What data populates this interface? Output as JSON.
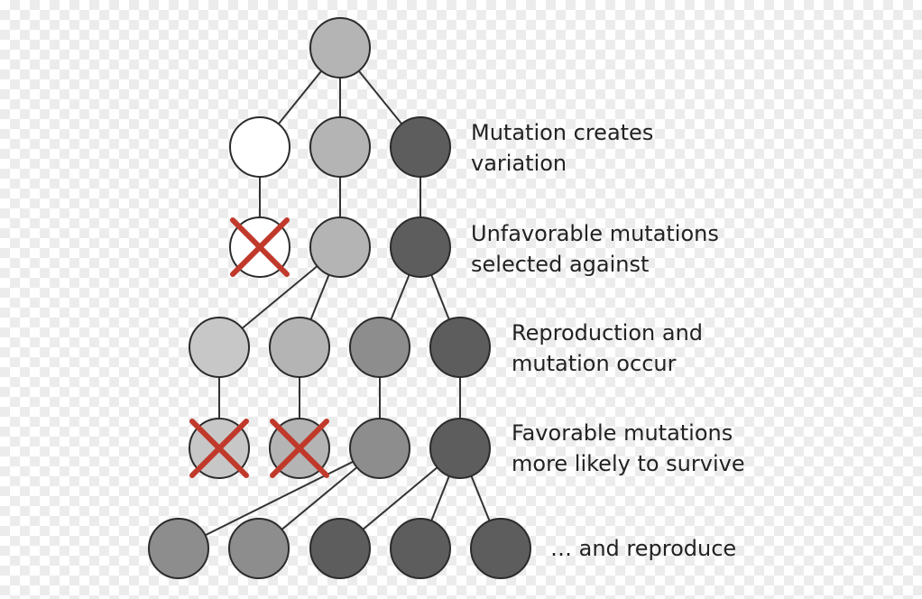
{
  "colors": {
    "white": "#ffffff",
    "light": "#c7c7c7",
    "light_mid": "#b4b4b4",
    "mid": "#8d8d8d",
    "dark": "#5d5d5d",
    "stroke": "#2b2b2b",
    "edge": "#333333",
    "cross": "#c0392b"
  },
  "nodes": [
    {
      "id": "root",
      "shade": "light_mid",
      "crossed": false
    },
    {
      "id": "g1a",
      "shade": "white",
      "crossed": false
    },
    {
      "id": "g1b",
      "shade": "light_mid",
      "crossed": false
    },
    {
      "id": "g1c",
      "shade": "dark",
      "crossed": false
    },
    {
      "id": "g2a",
      "shade": "white",
      "crossed": true
    },
    {
      "id": "g2b",
      "shade": "light_mid",
      "crossed": false
    },
    {
      "id": "g2c",
      "shade": "dark",
      "crossed": false
    },
    {
      "id": "g3a",
      "shade": "light",
      "crossed": false
    },
    {
      "id": "g3b",
      "shade": "light_mid",
      "crossed": false
    },
    {
      "id": "g3c",
      "shade": "mid",
      "crossed": false
    },
    {
      "id": "g3d",
      "shade": "dark",
      "crossed": false
    },
    {
      "id": "g4a",
      "shade": "light",
      "crossed": true
    },
    {
      "id": "g4b",
      "shade": "light_mid",
      "crossed": true
    },
    {
      "id": "g4c",
      "shade": "mid",
      "crossed": false
    },
    {
      "id": "g4d",
      "shade": "dark",
      "crossed": false
    },
    {
      "id": "g5a",
      "shade": "mid",
      "crossed": false
    },
    {
      "id": "g5b",
      "shade": "mid",
      "crossed": false
    },
    {
      "id": "g5c",
      "shade": "dark",
      "crossed": false
    },
    {
      "id": "g5d",
      "shade": "dark",
      "crossed": false
    },
    {
      "id": "g5e",
      "shade": "dark",
      "crossed": false
    }
  ],
  "edges": [
    [
      "root",
      "g1a"
    ],
    [
      "root",
      "g1b"
    ],
    [
      "root",
      "g1c"
    ],
    [
      "g1a",
      "g2a"
    ],
    [
      "g1b",
      "g2b"
    ],
    [
      "g1c",
      "g2c"
    ],
    [
      "g2b",
      "g3a"
    ],
    [
      "g2b",
      "g3b"
    ],
    [
      "g2c",
      "g3c"
    ],
    [
      "g2c",
      "g3d"
    ],
    [
      "g3a",
      "g4a"
    ],
    [
      "g3b",
      "g4b"
    ],
    [
      "g3c",
      "g4c"
    ],
    [
      "g3d",
      "g4d"
    ],
    [
      "g4c",
      "g5a"
    ],
    [
      "g4c",
      "g5b"
    ],
    [
      "g4d",
      "g5c"
    ],
    [
      "g4d",
      "g5d"
    ],
    [
      "g4d",
      "g5e"
    ]
  ],
  "labels": {
    "mutation": [
      "Mutation creates",
      "variation"
    ],
    "unfavorable": [
      "Unfavorable mutations",
      "selected against"
    ],
    "reproduction": [
      "Reproduction and",
      "mutation occur"
    ],
    "favorable": [
      "Favorable mutations",
      "more likely to survive"
    ],
    "reproduce": [
      "… and reproduce"
    ]
  }
}
